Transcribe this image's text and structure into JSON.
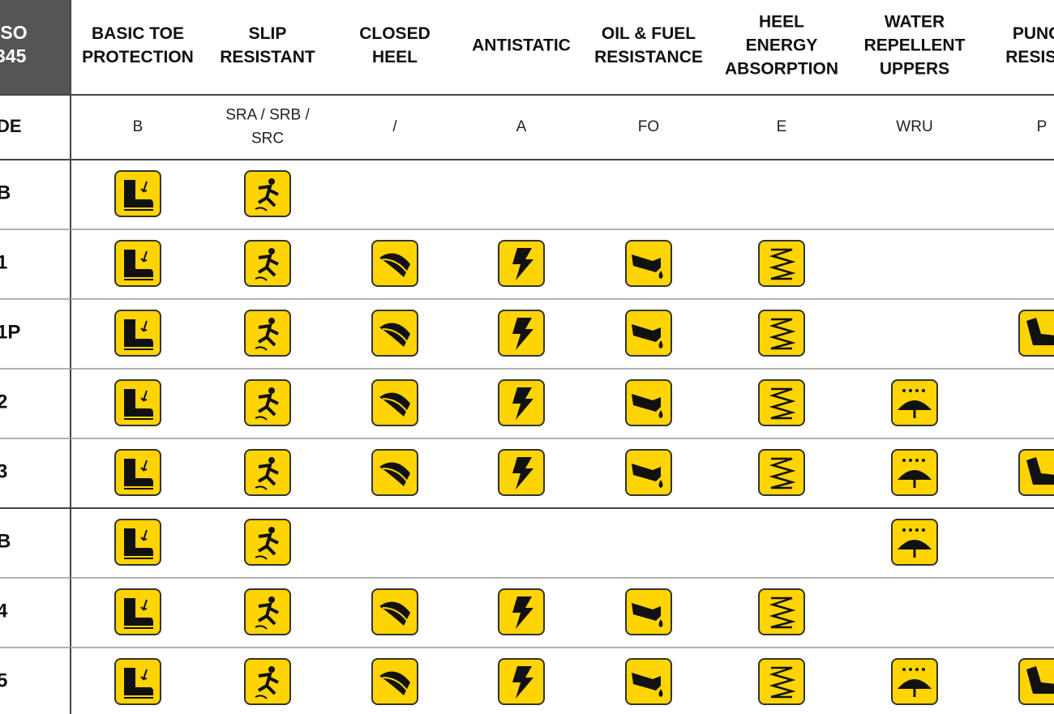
{
  "table": {
    "corner": [
      "ISO",
      "345"
    ],
    "headers": [
      [
        "BASIC TOE",
        "PROTECTION"
      ],
      [
        "SLIP",
        "RESISTANT"
      ],
      [
        "CLOSED",
        "HEEL"
      ],
      [
        "ANTISTATIC"
      ],
      [
        "OIL & FUEL",
        "RESISTANCE"
      ],
      [
        "HEEL",
        "ENERGY",
        "ABSORPTION"
      ],
      [
        "WATER",
        "REPELLENT",
        "UPPERS"
      ],
      [
        "PUNCT",
        "RESISTA"
      ]
    ],
    "code_label": "DE",
    "codes": [
      [
        "B"
      ],
      [
        "SRA / SRB /",
        "SRC"
      ],
      [
        "/"
      ],
      [
        "A"
      ],
      [
        "FO"
      ],
      [
        "E"
      ],
      [
        "WRU"
      ],
      [
        "P"
      ]
    ],
    "rows": [
      {
        "label": "B",
        "marks": [
          true,
          true,
          false,
          false,
          false,
          false,
          false,
          false
        ]
      },
      {
        "label": "1",
        "marks": [
          true,
          true,
          true,
          true,
          true,
          true,
          false,
          false
        ]
      },
      {
        "label": "1P",
        "marks": [
          true,
          true,
          true,
          true,
          true,
          true,
          false,
          true
        ]
      },
      {
        "label": "2",
        "marks": [
          true,
          true,
          true,
          true,
          true,
          true,
          true,
          false
        ]
      },
      {
        "label": "3",
        "marks": [
          true,
          true,
          true,
          true,
          true,
          true,
          true,
          true
        ]
      },
      {
        "label": "B",
        "marks": [
          true,
          true,
          false,
          false,
          false,
          false,
          true,
          false
        ]
      },
      {
        "label": "4",
        "marks": [
          true,
          true,
          true,
          true,
          true,
          true,
          false,
          false
        ]
      },
      {
        "label": "5",
        "marks": [
          true,
          true,
          true,
          true,
          true,
          true,
          true,
          true
        ]
      }
    ]
  }
}
